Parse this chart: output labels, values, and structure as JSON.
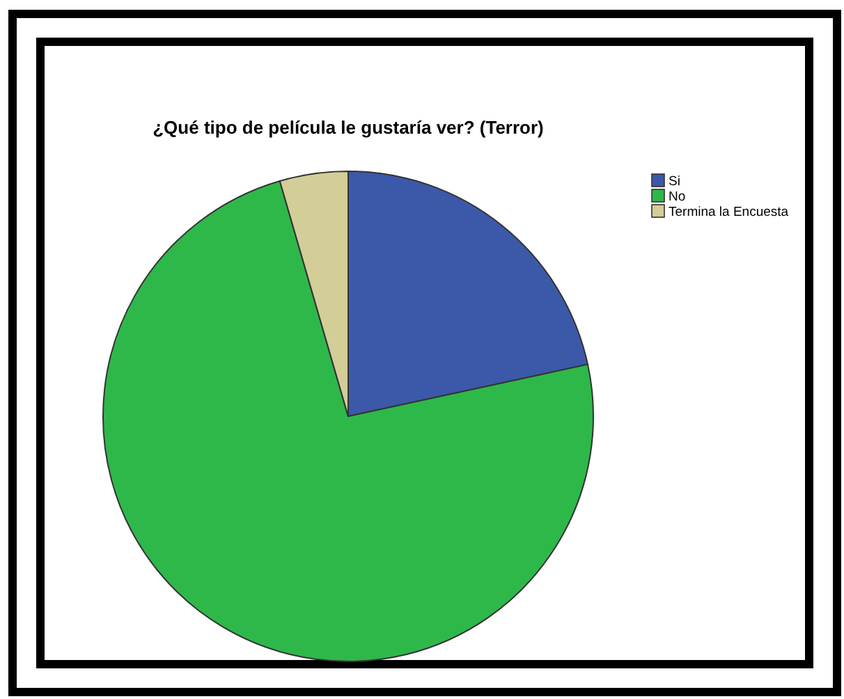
{
  "chart_data": {
    "type": "pie",
    "title": "¿Qué tipo de película le gustaría ver? (Terror)",
    "categories": [
      "Si",
      "No",
      "Termina la Encuesta"
    ],
    "values": [
      21.6,
      73.9,
      4.5
    ],
    "colors": [
      "#3c58a8",
      "#2eb84a",
      "#d3cd98"
    ],
    "legend": "top right"
  }
}
